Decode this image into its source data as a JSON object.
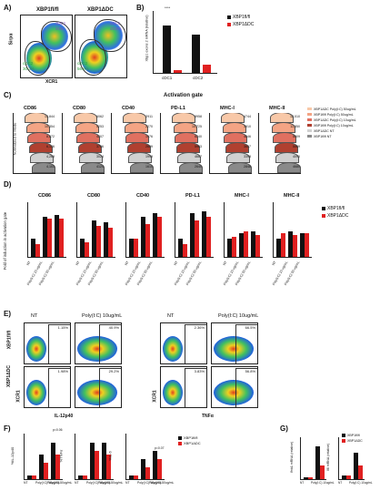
{
  "panels": {
    "A": {
      "letter": "A)",
      "titles": [
        "XBP1fl/fl",
        "XBP1ΔDC"
      ],
      "xaxis": "XCR1",
      "yaxis": "Sirpα",
      "gates": [
        {
          "cdc1": "cDC1",
          "v1": "34%",
          "cdc2": "cDC2",
          "v2": "30.3%"
        },
        {
          "cdc1": "cDC1",
          "v1": "20.6%",
          "cdc2": "cDC2",
          "v2": "56.6%"
        }
      ]
    },
    "B": {
      "letter": "B)",
      "ylabel": "Xbp1 exons 2 mRNA (relative)",
      "cats": [
        "cDC1",
        "cDC2"
      ],
      "legend": [
        "XBP1fl/fl",
        "XBP1ΔDC"
      ],
      "sig": "****"
    },
    "C": {
      "letter": "C)",
      "title": "Activation gate",
      "ylabel": "Normalized to Mode",
      "markers": [
        "CD86",
        "CD80",
        "CD40",
        "PD-L1",
        "MHC-I",
        "MHC-II"
      ],
      "legend": [
        "XBP1ΔDC Poly(I:C) 50ug/mL",
        "XBP1fl/fl Poly(I:C) 50ug/mL",
        "XBP1ΔDC Poly(I:C) 10ug/mL",
        "XBP1fl/fl Poly(I:C) 10ug/mL",
        "XBP1ΔDC NT",
        "XBP1fl/fl NT"
      ],
      "mfi": [
        [
          "13,844",
          "10,354",
          "8,872",
          "6,146",
          "4,268",
          "4,103"
        ],
        [
          "6062",
          "5253",
          "4207",
          "3766",
          "3024",
          "4124"
        ],
        [
          "2911",
          "2270",
          "1976",
          "2609",
          "1998",
          "1610"
        ],
        [
          "8958",
          "10,725",
          "6240",
          "5963",
          "4667",
          "2640"
        ],
        [
          "4744",
          "3910",
          "4846",
          "3657",
          "3398",
          "2848"
        ],
        [
          "12,010",
          "11,850",
          "5009",
          "5569",
          "4090",
          "4680"
        ]
      ]
    },
    "D": {
      "letter": "D)",
      "ylabel": "Fold of induction in activation gate",
      "markers": [
        "CD86",
        "CD80",
        "CD40",
        "PD-L1",
        "MHC-I",
        "MHC-II"
      ],
      "xcats": [
        "NT",
        "Poly(I:C) 10 ug/mL",
        "Poly(I:C) 50 ug/mL"
      ],
      "legend": [
        "XBP1fl/fl",
        "XBP1ΔDC"
      ]
    },
    "E": {
      "letter": "E)",
      "cols": [
        "NT",
        "Poly(I:C) 10ug/mL",
        "NT",
        "Poly(I:C) 10ug/mL"
      ],
      "rows": [
        "XBP1fl/fl",
        "XBP1ΔDC"
      ],
      "pct": [
        [
          "1.15%",
          "40.9%",
          "2.36%",
          "66.5%"
        ],
        [
          "1.98%",
          "29.2%",
          "3.83%",
          "56.8%"
        ]
      ],
      "xlabels": [
        "IL-12p40",
        "TNFα"
      ],
      "ylabel": "XCR1"
    },
    "F": {
      "letter": "F)",
      "ylabels": [
        "%IL-12p40",
        "%TNFα",
        "%IL-6"
      ],
      "xcats": [
        "NT",
        "Poly(I:C) 10ug/mL",
        "Poly(I:C) 50ug/mL"
      ],
      "legend": [
        "XBP1fl/fl",
        "XBP1ΔDC"
      ],
      "pvals": [
        "p=0.06",
        "p=0.07"
      ]
    },
    "G": {
      "letter": "G)",
      "ylabels": [
        "Ifnb1 mRNA (relative)",
        "Il6 mRNA (relative)"
      ],
      "xcats": [
        "NT",
        "Poly(I:C) 10ug/mL"
      ],
      "legend": [
        "XBP1fl/fl",
        "XBP1ΔDC"
      ]
    }
  },
  "colors": {
    "wt": "#111111",
    "ko": "#e02020",
    "histA": "#f4b183",
    "histB": "#c0504d",
    "histC": "#7f7f7f"
  }
}
